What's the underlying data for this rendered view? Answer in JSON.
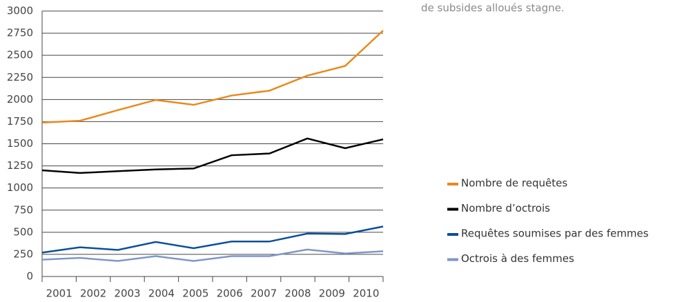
{
  "chart_data": {
    "type": "line",
    "annotation": "de subsides alloués stagne.",
    "categories": [
      "2001",
      "2002",
      "2003",
      "2004",
      "2005",
      "2006",
      "2007",
      "2008",
      "2009",
      "2010"
    ],
    "series": [
      {
        "name": "Nombre de requêtes",
        "color": "#e8891c",
        "values": [
          1740,
          1760,
          1880,
          1995,
          1940,
          2045,
          2100,
          2270,
          2380,
          2780
        ]
      },
      {
        "name": "Nombre d’octrois",
        "color": "#000000",
        "values": [
          1200,
          1170,
          1190,
          1210,
          1220,
          1370,
          1390,
          1560,
          1450,
          1550
        ]
      },
      {
        "name": "Requêtes soumises par des femmes",
        "color": "#0a4f9a",
        "values": [
          270,
          330,
          300,
          390,
          320,
          395,
          395,
          485,
          480,
          565
        ]
      },
      {
        "name": "Octrois à des femmes",
        "color": "#7f96c8",
        "values": [
          190,
          210,
          175,
          230,
          175,
          230,
          230,
          305,
          260,
          285
        ]
      }
    ],
    "ylim": [
      0,
      3000
    ],
    "yticks": [
      0,
      250,
      500,
      750,
      1000,
      1250,
      1500,
      1750,
      2000,
      2250,
      2500,
      2750,
      3000
    ],
    "grid": true
  }
}
